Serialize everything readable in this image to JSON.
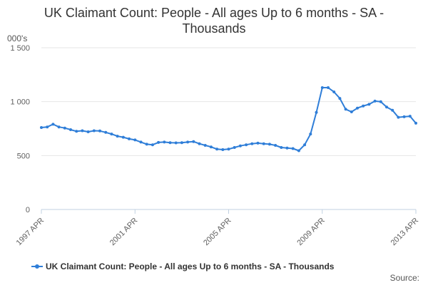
{
  "chart_data": {
    "type": "line",
    "title_lines": [
      "UK Claimant Count: People - All ages Up to 6 months - SA -",
      "Thousands"
    ],
    "y_unit_label": "000's",
    "ylim": [
      0,
      1500
    ],
    "yticks": [
      {
        "value": 0,
        "label": "0"
      },
      {
        "value": 500,
        "label": "500"
      },
      {
        "value": 1000,
        "label": "1 000"
      },
      {
        "value": 1500,
        "label": "1 500"
      }
    ],
    "xlim": [
      1997.25,
      2013.25
    ],
    "xticks": [
      {
        "value": 1997.25,
        "label": "1997 APR"
      },
      {
        "value": 2001.25,
        "label": "2001 APR"
      },
      {
        "value": 2005.25,
        "label": "2005 APR"
      },
      {
        "value": 2009.25,
        "label": "2009 APR"
      },
      {
        "value": 2013.25,
        "label": "2013 APR"
      }
    ],
    "grid": "horizontal",
    "color": "#2f7ed8",
    "legend_position": "bottom",
    "series": [
      {
        "name": "UK Claimant Count: People - All ages Up to 6 months - SA - Thousands",
        "points": [
          [
            1997.25,
            760
          ],
          [
            1997.5,
            765
          ],
          [
            1997.75,
            790
          ],
          [
            1998.0,
            765
          ],
          [
            1998.25,
            755
          ],
          [
            1998.5,
            740
          ],
          [
            1998.75,
            725
          ],
          [
            1999.0,
            730
          ],
          [
            1999.25,
            720
          ],
          [
            1999.5,
            730
          ],
          [
            1999.75,
            728
          ],
          [
            2000.0,
            715
          ],
          [
            2000.25,
            700
          ],
          [
            2000.5,
            680
          ],
          [
            2000.75,
            670
          ],
          [
            2001.0,
            655
          ],
          [
            2001.25,
            645
          ],
          [
            2001.5,
            625
          ],
          [
            2001.75,
            605
          ],
          [
            2002.0,
            600
          ],
          [
            2002.25,
            622
          ],
          [
            2002.5,
            625
          ],
          [
            2002.75,
            620
          ],
          [
            2003.0,
            618
          ],
          [
            2003.25,
            620
          ],
          [
            2003.5,
            625
          ],
          [
            2003.75,
            630
          ],
          [
            2004.0,
            610
          ],
          [
            2004.25,
            595
          ],
          [
            2004.5,
            580
          ],
          [
            2004.75,
            560
          ],
          [
            2005.0,
            555
          ],
          [
            2005.25,
            560
          ],
          [
            2005.5,
            575
          ],
          [
            2005.75,
            590
          ],
          [
            2006.0,
            600
          ],
          [
            2006.25,
            610
          ],
          [
            2006.5,
            615
          ],
          [
            2006.75,
            610
          ],
          [
            2007.0,
            605
          ],
          [
            2007.25,
            595
          ],
          [
            2007.5,
            575
          ],
          [
            2007.75,
            570
          ],
          [
            2008.0,
            565
          ],
          [
            2008.25,
            545
          ],
          [
            2008.5,
            600
          ],
          [
            2008.75,
            700
          ],
          [
            2009.0,
            900
          ],
          [
            2009.25,
            1130
          ],
          [
            2009.5,
            1130
          ],
          [
            2009.75,
            1090
          ],
          [
            2010.0,
            1030
          ],
          [
            2010.25,
            930
          ],
          [
            2010.5,
            905
          ],
          [
            2010.75,
            940
          ],
          [
            2011.0,
            960
          ],
          [
            2011.25,
            975
          ],
          [
            2011.5,
            1005
          ],
          [
            2011.75,
            1000
          ],
          [
            2012.0,
            950
          ],
          [
            2012.25,
            920
          ],
          [
            2012.5,
            855
          ],
          [
            2012.75,
            860
          ],
          [
            2013.0,
            865
          ],
          [
            2013.25,
            800
          ]
        ]
      }
    ]
  },
  "footer": {
    "source_label": "Source:"
  }
}
